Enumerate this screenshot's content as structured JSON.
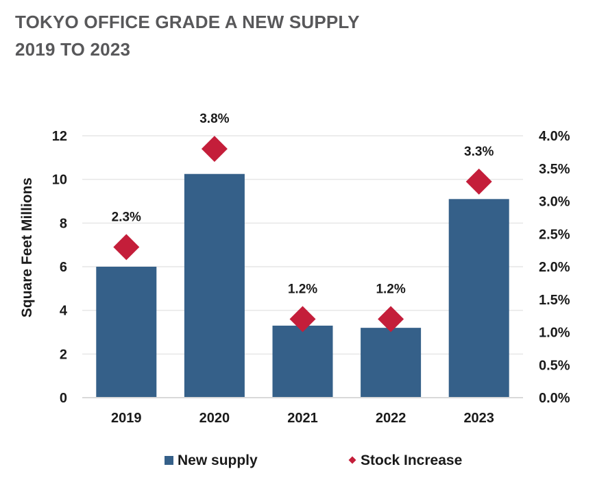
{
  "title": {
    "line1": "TOKYO OFFICE GRADE A NEW SUPPLY",
    "line2": "2019 TO 2023"
  },
  "chart_data": {
    "type": "bar",
    "categories": [
      "2019",
      "2020",
      "2021",
      "2022",
      "2023"
    ],
    "series": [
      {
        "name": "New supply",
        "kind": "bar",
        "axis": "left",
        "values": [
          6.0,
          10.25,
          3.3,
          3.2,
          9.1
        ],
        "color": "#356089"
      },
      {
        "name": "Stock Increase",
        "kind": "marker",
        "marker": "diamond",
        "axis": "right",
        "values": [
          2.3,
          3.8,
          1.2,
          1.2,
          3.3
        ],
        "labels": [
          "2.3%",
          "3.8%",
          "1.2%",
          "1.2%",
          "3.3%"
        ],
        "color": "#c41e3a"
      }
    ],
    "ylabel": "Square Feet Millions",
    "ylim": [
      0,
      12
    ],
    "y_ticks": [
      "0",
      "2",
      "4",
      "6",
      "8",
      "10",
      "12"
    ],
    "y2lim": [
      0,
      4.0
    ],
    "y2_ticks": [
      "0.0%",
      "0.5%",
      "1.0%",
      "1.5%",
      "2.0%",
      "2.5%",
      "3.0%",
      "3.5%",
      "4.0%"
    ],
    "grid": true,
    "legend": "bottom",
    "gridline_color": "#e6e6e6"
  }
}
